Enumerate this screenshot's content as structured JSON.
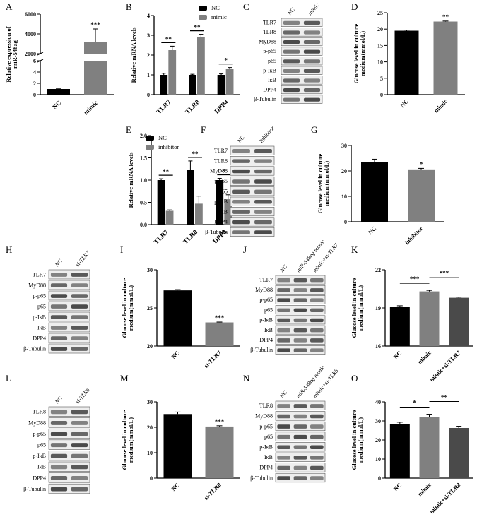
{
  "figure": {
    "panel_letters": [
      "A",
      "B",
      "C",
      "D",
      "E",
      "F",
      "G",
      "H",
      "I",
      "J",
      "K",
      "L",
      "M",
      "N",
      "O"
    ]
  },
  "colors": {
    "black_bar": "#000000",
    "gray_bar": "#808080",
    "dark_gray_bar": "#4a4a4a",
    "axis": "#000000",
    "blot_bg": "#eeeeee",
    "band": "#2a2a2a"
  },
  "chart_data": [
    {
      "panel": "A",
      "type": "bar",
      "categories": [
        "NC",
        "mimic"
      ],
      "values": [
        1,
        3200
      ],
      "errors": [
        0.1,
        1300
      ],
      "significance": [
        "",
        "***"
      ],
      "ylabel_lines": [
        "Relative expression of",
        "miR-548ag"
      ],
      "yticks": [
        "0",
        "2",
        "4",
        "6",
        "2000",
        "4000",
        "6000"
      ],
      "axis_break": true
    },
    {
      "panel": "B",
      "type": "bar",
      "categories": [
        "TLR7",
        "TLR8",
        "DPP4"
      ],
      "series": [
        {
          "name": "NC",
          "values": [
            1.0,
            1.0,
            1.0
          ],
          "errors": [
            0.08,
            0.03,
            0.05
          ]
        },
        {
          "name": "mimic",
          "values": [
            2.25,
            2.9,
            1.32
          ],
          "errors": [
            0.2,
            0.15,
            0.05
          ]
        }
      ],
      "significance": [
        "**",
        "**",
        "*"
      ],
      "ylabel": "Relative mRNA levels",
      "ylim": [
        0,
        4
      ],
      "yticks": [
        "0",
        "1",
        "2",
        "3",
        "4"
      ]
    },
    {
      "panel": "D",
      "type": "bar",
      "categories": [
        "NC",
        "mimic"
      ],
      "values": [
        19.5,
        22.3
      ],
      "errors": [
        0.2,
        0.15
      ],
      "significance": [
        "",
        "**"
      ],
      "ylabel_lines": [
        "Glucose level in culture",
        "medium(mmol/L)"
      ],
      "ylim": [
        0,
        25
      ],
      "yticks": [
        "0",
        "5",
        "10",
        "15",
        "20",
        "25"
      ]
    },
    {
      "panel": "E",
      "type": "bar",
      "categories": [
        "TLR7",
        "TLR8",
        "DPP4"
      ],
      "series": [
        {
          "name": "NC",
          "values": [
            1.0,
            1.23,
            1.0
          ],
          "errors": [
            0.03,
            0.2,
            0.04
          ]
        },
        {
          "name": "inhibitor",
          "values": [
            0.31,
            0.47,
            0.57
          ],
          "errors": [
            0.02,
            0.17,
            0.1
          ]
        }
      ],
      "significance": [
        "**",
        "**",
        "*"
      ],
      "ylabel": "Relative mRNA levels",
      "ylim": [
        0,
        2.0
      ],
      "yticks": [
        "0.0",
        "0.5",
        "1.0",
        "1.5",
        "2.0"
      ]
    },
    {
      "panel": "G",
      "type": "bar",
      "categories": [
        "NC",
        "inhibitor"
      ],
      "values": [
        23.5,
        20.6
      ],
      "errors": [
        1.1,
        0.4
      ],
      "significance": [
        "",
        "*"
      ],
      "ylabel_lines": [
        "Glucose level in culture",
        "medium(mmol/L)"
      ],
      "ylim": [
        0,
        30
      ],
      "yticks": [
        "0",
        "10",
        "20",
        "30"
      ]
    },
    {
      "panel": "I",
      "type": "bar",
      "categories": [
        "NC",
        "si-TLR7"
      ],
      "values": [
        27.3,
        23.1
      ],
      "errors": [
        0.1,
        0.05
      ],
      "significance": [
        "",
        "***"
      ],
      "ylabel_lines": [
        "Glucose level in culture",
        "medium(mmol/L)"
      ],
      "ylim": [
        20,
        30
      ],
      "yticks": [
        "20",
        "25",
        "30"
      ]
    },
    {
      "panel": "K",
      "type": "bar",
      "categories": [
        "NC",
        "mimic",
        "mimic+si-TLR7"
      ],
      "values": [
        19.1,
        20.3,
        19.8
      ],
      "errors": [
        0.07,
        0.08,
        0.05
      ],
      "brackets": [
        {
          "from": 0,
          "to": 1,
          "label": "***"
        },
        {
          "from": 1,
          "to": 2,
          "label": "***"
        }
      ],
      "ylabel_lines": [
        "Glucose level in culture",
        "medium(mmol/L)"
      ],
      "ylim": [
        16,
        22
      ],
      "yticks": [
        "16",
        "19",
        "22"
      ]
    },
    {
      "panel": "M",
      "type": "bar",
      "categories": [
        "NC",
        "si-TLR8"
      ],
      "values": [
        25.2,
        20.3
      ],
      "errors": [
        0.8,
        0.3
      ],
      "significance": [
        "",
        "***"
      ],
      "ylabel_lines": [
        "Glucose level in culture",
        "medium(mmol/L)"
      ],
      "ylim": [
        0,
        30
      ],
      "yticks": [
        "0",
        "10",
        "20",
        "30"
      ]
    },
    {
      "panel": "O",
      "type": "bar",
      "categories": [
        "NC",
        "mimic",
        "mimic+si-TLR8"
      ],
      "values": [
        28.5,
        32.0,
        26.3
      ],
      "errors": [
        0.8,
        1.5,
        0.9
      ],
      "brackets": [
        {
          "from": 0,
          "to": 1,
          "label": "*"
        },
        {
          "from": 1,
          "to": 2,
          "label": "**"
        }
      ],
      "ylabel_lines": [
        "Glucose level in culture",
        "medium(mmol/L)"
      ],
      "ylim": [
        0,
        40
      ],
      "yticks": [
        "0",
        "10",
        "20",
        "30",
        "40"
      ]
    }
  ],
  "blots": [
    {
      "panel": "C",
      "lanes": [
        "NC",
        "mimic"
      ],
      "rows": [
        "TLR7",
        "TLR8",
        "MyD88",
        "p-p65",
        "p65",
        "p-IκB",
        "IκB",
        "DPP4",
        "β-Tubulin"
      ]
    },
    {
      "panel": "F",
      "lanes": [
        "NC",
        "Inhibitor"
      ],
      "rows": [
        "TLR7",
        "TLR8",
        "MyD88",
        "p-p65",
        "p65",
        "p-IκB",
        "IκB",
        "DPP4",
        "β-Tubulin"
      ]
    },
    {
      "panel": "H",
      "lanes": [
        "NC",
        "si-TLR7"
      ],
      "rows": [
        "TLR7",
        "MyD88",
        "p-p65",
        "p65",
        "p-IκB",
        "IκB",
        "DPP4",
        "β-Tubulin"
      ]
    },
    {
      "panel": "J",
      "lanes": [
        "NC",
        "miR-548ag mimic",
        "mimic+si-TLR7"
      ],
      "rows": [
        "TLR7",
        "MyD88",
        "p-p65",
        "p65",
        "p-IκB",
        "IκB",
        "DPP4",
        "β-Tubulin"
      ]
    },
    {
      "panel": "L",
      "lanes": [
        "NC",
        "si-TLR8"
      ],
      "rows": [
        "TLR8",
        "MyD88",
        "p-p65",
        "p65",
        "p-IκB",
        "IκB",
        "DPP4",
        "β-Tubulin"
      ]
    },
    {
      "panel": "N",
      "lanes": [
        "NC",
        "miR-548ag mimic",
        "mimic+si-TLR8"
      ],
      "rows": [
        "TLR8",
        "MyD88",
        "p-p65",
        "p65",
        "p-IκB",
        "IκB",
        "DPP4",
        "β-Tubulin"
      ]
    }
  ]
}
